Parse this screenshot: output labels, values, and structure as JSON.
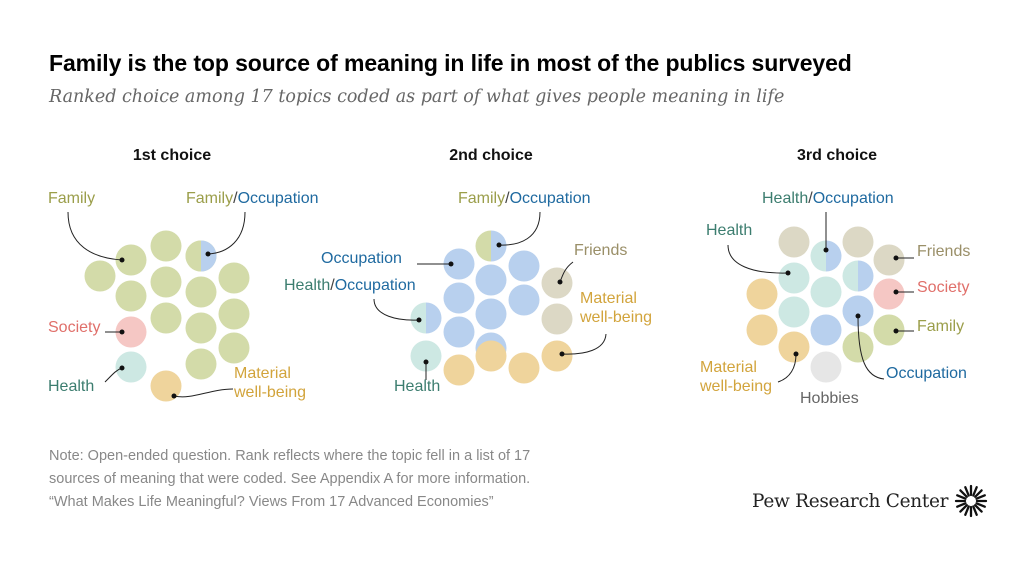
{
  "title": "Family is the top source of meaning in life in most of the publics surveyed",
  "subtitle": "Ranked choice among 17 topics coded as part of what gives people meaning in life",
  "note": {
    "line1": "Note: Open-ended question. Rank reflects where the topic fell in a list of 17",
    "line2": "sources of meaning that were coded. See Appendix A for more information.",
    "source": "“What Makes Life Meaningful? Views From 17 Advanced Economies”"
  },
  "brand": {
    "name": "Pew Research Center",
    "logo_icon": "pew-sunburst-icon"
  },
  "colors": {
    "Family": "#d3dba9",
    "Occupation": "#b8d0ee",
    "Society": "#f5c7c4",
    "Health": "#cde8e3",
    "Material well-being": "#efd49c",
    "Friends": "#dcd8c5",
    "Hobbies": "#e6e6e6"
  },
  "label_colors": {
    "Family": "#9b9e4a",
    "Occupation": "#1f6aa0",
    "Society": "#e06f6a",
    "Health": "#3c7d6f",
    "Material well-being": "#d2a43c",
    "Friends": "#9a8f68",
    "Hobbies": "#666666"
  },
  "chart_data": {
    "type": "dot-matrix",
    "unit": "one circle per public surveyed (17 publics)",
    "charts": [
      {
        "title": "1st choice",
        "publics": [
          "Family",
          "Family",
          "Family",
          "Family",
          "Family",
          "Family",
          "Family",
          "Family",
          "Family",
          "Family",
          "Family",
          "Family",
          "Family",
          "Family/Occupation",
          "Society",
          "Health",
          "Material well-being"
        ],
        "labels": [
          {
            "text": "Family",
            "topics": [
              "Family"
            ]
          },
          {
            "text": "Family/Occupation",
            "topics": [
              "Family",
              "Occupation"
            ]
          },
          {
            "text": "Society",
            "topics": [
              "Society"
            ]
          },
          {
            "text": "Health",
            "topics": [
              "Health"
            ]
          },
          {
            "text": "Material well-being",
            "topics": [
              "Material well-being"
            ]
          }
        ]
      },
      {
        "title": "2nd choice",
        "publics": [
          "Family/Occupation",
          "Occupation",
          "Occupation",
          "Occupation",
          "Occupation",
          "Occupation",
          "Occupation",
          "Occupation",
          "Occupation",
          "Health/Occupation",
          "Friends",
          "Friends",
          "Material well-being",
          "Material well-being",
          "Material well-being",
          "Material well-being",
          "Health"
        ],
        "labels": [
          {
            "text": "Family/Occupation",
            "topics": [
              "Family",
              "Occupation"
            ]
          },
          {
            "text": "Occupation",
            "topics": [
              "Occupation"
            ]
          },
          {
            "text": "Friends",
            "topics": [
              "Friends"
            ]
          },
          {
            "text": "Health/Occupation",
            "topics": [
              "Health",
              "Occupation"
            ]
          },
          {
            "text": "Material well-being",
            "topics": [
              "Material well-being"
            ]
          },
          {
            "text": "Health",
            "topics": [
              "Health"
            ]
          }
        ]
      },
      {
        "title": "3rd choice",
        "publics": [
          "Friends",
          "Health/Occupation",
          "Friends",
          "Health",
          "Health/Occupation",
          "Friends",
          "Society",
          "Material well-being",
          "Health",
          "Health",
          "Occupation",
          "Family",
          "Material well-being",
          "Occupation",
          "Family",
          "Hobbies",
          "Material well-being"
        ],
        "labels": [
          {
            "text": "Health/Occupation",
            "topics": [
              "Health",
              "Occupation"
            ]
          },
          {
            "text": "Health",
            "topics": [
              "Health"
            ]
          },
          {
            "text": "Friends",
            "topics": [
              "Friends"
            ]
          },
          {
            "text": "Society",
            "topics": [
              "Society"
            ]
          },
          {
            "text": "Family",
            "topics": [
              "Family"
            ]
          },
          {
            "text": "Material well-being",
            "topics": [
              "Material well-being"
            ]
          },
          {
            "text": "Occupation",
            "topics": [
              "Occupation"
            ]
          },
          {
            "text": "Hobbies",
            "topics": [
              "Hobbies"
            ]
          }
        ]
      }
    ]
  }
}
